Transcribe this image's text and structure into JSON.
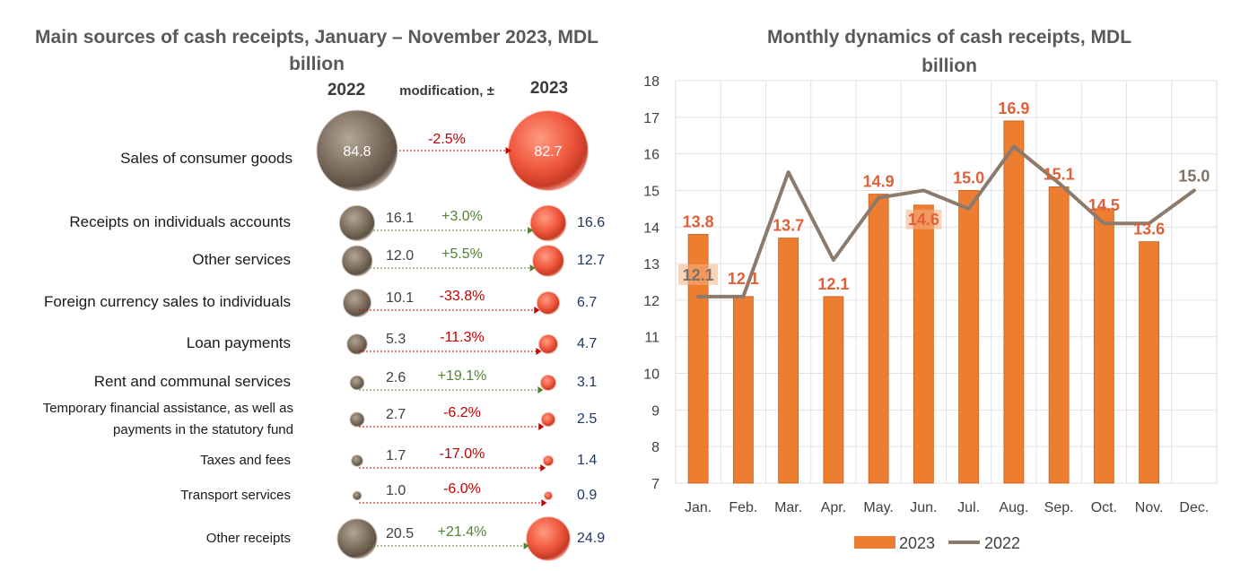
{
  "left_panel": {
    "title_line1": "Main sources of cash receipts, January – November 2023, MDL",
    "title_line2": "billion",
    "col_2022": "2022",
    "col_mod": "modification, ±",
    "col_2023": "2023"
  },
  "right_panel": {
    "title_line1": "Monthly dynamics of cash receipts, MDL",
    "title_line2": "billion"
  },
  "colors": {
    "orange_bar": "#ED7D31",
    "gray_line": "#8C7B6B",
    "bubble_2022": "#8A7A6A",
    "bubble_2023": "#F0604A",
    "positive": "#548235",
    "negative": "#C00000",
    "value_2023_text": "#1F3864",
    "title": "#595959",
    "bar_label": "#E0603A"
  },
  "chart_data": [
    {
      "type": "table",
      "title": "Main sources of cash receipts, January – November 2023, MDL billion",
      "columns": [
        "2022",
        "modification, ±",
        "2023"
      ],
      "rows": [
        {
          "label": "Sales of consumer goods",
          "v2022": "84.8",
          "change": "-2.5%",
          "v2023": "82.7",
          "sign": "neg"
        },
        {
          "label": "Receipts on individuals accounts",
          "v2022": "16.1",
          "change": "+3.0%",
          "v2023": "16.6",
          "sign": "pos"
        },
        {
          "label": "Other services",
          "v2022": "12.0",
          "change": "+5.5%",
          "v2023": "12.7",
          "sign": "pos"
        },
        {
          "label": "Foreign currency sales to individuals",
          "v2022": "10.1",
          "change": "-33.8%",
          "v2023": "6.7",
          "sign": "neg"
        },
        {
          "label": "Loan payments",
          "v2022": "5.3",
          "change": "-11.3%",
          "v2023": "4.7",
          "sign": "neg"
        },
        {
          "label": "Rent and communal services",
          "v2022": "2.6",
          "change": "+19.1%",
          "v2023": "3.1",
          "sign": "pos"
        },
        {
          "label": "Temporary financial assistance, as well as",
          "label2": "payments in the statutory fund",
          "v2022": "2.7",
          "change": "-6.2%",
          "v2023": "2.5",
          "sign": "neg"
        },
        {
          "label": "Taxes and fees",
          "v2022": "1.7",
          "change": "-17.0%",
          "v2023": "1.4",
          "sign": "neg"
        },
        {
          "label": "Transport services",
          "v2022": "1.0",
          "change": "-6.0%",
          "v2023": "0.9",
          "sign": "neg"
        },
        {
          "label": "Other receipts",
          "v2022": "20.5",
          "change": "+21.4%",
          "v2023": "24.9",
          "sign": "pos"
        }
      ]
    },
    {
      "type": "bar",
      "title": "Monthly dynamics of cash receipts, MDL billion",
      "categories": [
        "Jan.",
        "Feb.",
        "Mar.",
        "Apr.",
        "May.",
        "Jun.",
        "Jul.",
        "Aug.",
        "Sep.",
        "Oct.",
        "Nov.",
        "Dec."
      ],
      "ylim": [
        7,
        18
      ],
      "yticks": [
        "7",
        "8",
        "9",
        "10",
        "11",
        "12",
        "13",
        "14",
        "15",
        "16",
        "17",
        "18"
      ],
      "grid": true,
      "legend": "bottom",
      "series": [
        {
          "name": "2023",
          "kind": "bar",
          "values": [
            13.8,
            12.1,
            13.7,
            12.1,
            14.9,
            14.6,
            15.0,
            16.9,
            15.1,
            14.5,
            13.6,
            null
          ],
          "labels": [
            "13.8",
            "12.1",
            "13.7",
            "12.1",
            "14.9",
            "14.6",
            "15.0",
            "16.9",
            "15.1",
            "14.5",
            "13.6",
            ""
          ]
        },
        {
          "name": "2022",
          "kind": "line",
          "values": [
            12.1,
            12.1,
            15.5,
            13.1,
            14.8,
            15.0,
            14.5,
            16.2,
            15.2,
            14.1,
            14.1,
            15.0
          ],
          "labels": [
            "12.1",
            "",
            "",
            "",
            "",
            "",
            "",
            "",
            "",
            "",
            "",
            "15.0"
          ]
        }
      ]
    }
  ]
}
